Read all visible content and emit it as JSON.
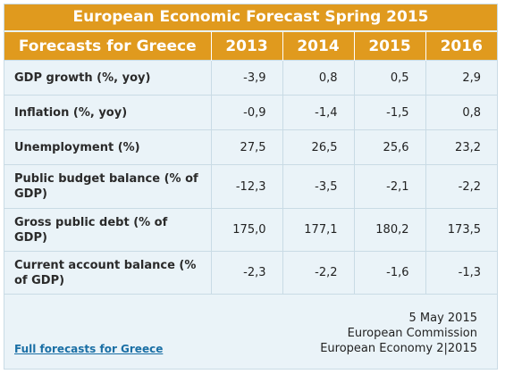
{
  "title": "European Economic Forecast Spring 2015",
  "header": {
    "label": "Forecasts for Greece",
    "years": [
      "2013",
      "2014",
      "2015",
      "2016"
    ]
  },
  "rows": [
    {
      "label": "GDP growth (%, yoy)",
      "values": [
        "-3,9",
        "0,8",
        "0,5",
        "2,9"
      ]
    },
    {
      "label": "Inflation (%, yoy)",
      "values": [
        "-0,9",
        "-1,4",
        "-1,5",
        "0,8"
      ]
    },
    {
      "label": "Unemployment (%)",
      "values": [
        "27,5",
        "26,5",
        "25,6",
        "23,2"
      ]
    },
    {
      "label": "Public budget balance (% of GDP)",
      "values": [
        "-12,3",
        "-3,5",
        "-2,1",
        "-2,2"
      ]
    },
    {
      "label": "Gross public debt (% of GDP)",
      "values": [
        "175,0",
        "177,1",
        "180,2",
        "173,5"
      ]
    },
    {
      "label": "Current account balance (% of GDP)",
      "values": [
        "-2,3",
        "-2,2",
        "-1,6",
        "-1,3"
      ]
    }
  ],
  "footer": {
    "link_label": "Full forecasts for Greece",
    "date": "5 May 2015",
    "source_org": "European Commission",
    "source_pub": "European Economy 2|2015"
  },
  "colors": {
    "header_bg": "#e09a1e",
    "body_bg": "#eaf3f8",
    "link": "#1a6fa5"
  }
}
